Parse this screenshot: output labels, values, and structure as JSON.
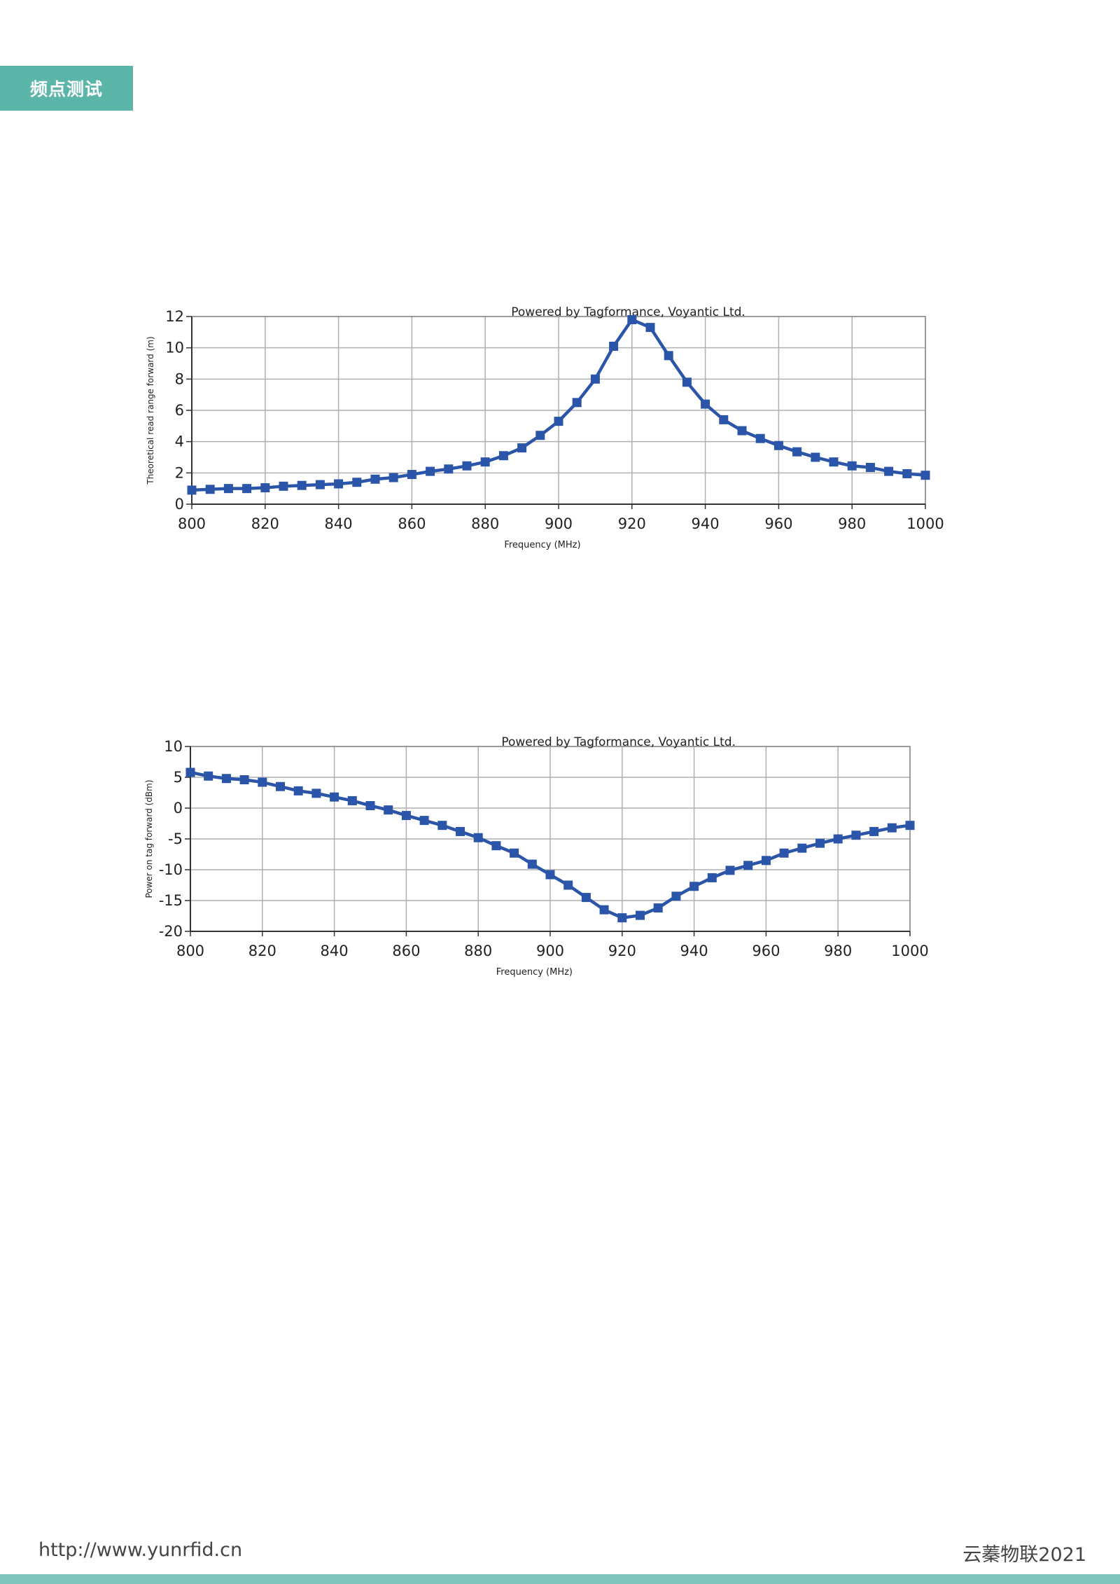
{
  "header": {
    "section_label": "频点测试"
  },
  "footer": {
    "url": "http://www.yunrfid.cn",
    "brand": "云蓁物联2021"
  },
  "colors": {
    "accent": "#5bb5a8",
    "footer_bar": "#7ec4bc",
    "series": "#2a55a8",
    "grid": "#b0b0b0"
  },
  "chart_data": [
    {
      "type": "line",
      "title": "Powered by Tagformance, Voyantic Ltd.",
      "xlabel": "Frequency (MHz)",
      "ylabel": "Theoretical read range forward (m)",
      "xlim": [
        800,
        1000
      ],
      "ylim": [
        0,
        12
      ],
      "xticks": [
        800,
        820,
        840,
        860,
        880,
        900,
        920,
        940,
        960,
        980,
        1000
      ],
      "yticks": [
        0,
        2,
        4,
        6,
        8,
        10,
        12
      ],
      "grid": true,
      "x": [
        800,
        805,
        810,
        815,
        820,
        825,
        830,
        835,
        840,
        845,
        850,
        855,
        860,
        865,
        870,
        875,
        880,
        885,
        890,
        895,
        900,
        905,
        910,
        915,
        920,
        925,
        930,
        935,
        940,
        945,
        950,
        955,
        960,
        965,
        970,
        975,
        980,
        985,
        990,
        995,
        1000
      ],
      "series": [
        {
          "values": [
            0.9,
            0.95,
            1.0,
            1.0,
            1.05,
            1.15,
            1.2,
            1.25,
            1.3,
            1.4,
            1.6,
            1.7,
            1.9,
            2.1,
            2.25,
            2.45,
            2.7,
            3.1,
            3.6,
            4.4,
            5.3,
            6.5,
            8.0,
            10.1,
            11.8,
            11.3,
            9.5,
            7.8,
            6.4,
            5.4,
            4.7,
            4.2,
            3.75,
            3.35,
            3.0,
            2.7,
            2.45,
            2.35,
            2.1,
            1.95,
            1.85
          ]
        }
      ]
    },
    {
      "type": "line",
      "title": "Powered by Tagformance, Voyantic Ltd.",
      "xlabel": "Frequency (MHz)",
      "ylabel": "Power on tag forward (dBm)",
      "xlim": [
        800,
        1000
      ],
      "ylim": [
        -20,
        10
      ],
      "xticks": [
        800,
        820,
        840,
        860,
        880,
        900,
        920,
        940,
        960,
        980,
        1000
      ],
      "yticks": [
        -20,
        -15,
        -10,
        -5,
        0,
        5,
        10
      ],
      "grid": true,
      "x": [
        800,
        805,
        810,
        815,
        820,
        825,
        830,
        835,
        840,
        845,
        850,
        855,
        860,
        865,
        870,
        875,
        880,
        885,
        890,
        895,
        900,
        905,
        910,
        915,
        920,
        925,
        930,
        935,
        940,
        945,
        950,
        955,
        960,
        965,
        970,
        975,
        980,
        985,
        990,
        995,
        1000
      ],
      "series": [
        {
          "values": [
            5.8,
            5.2,
            4.8,
            4.6,
            4.2,
            3.5,
            2.8,
            2.4,
            1.8,
            1.2,
            0.4,
            -0.3,
            -1.2,
            -2.0,
            -2.8,
            -3.8,
            -4.8,
            -6.1,
            -7.3,
            -9.1,
            -10.8,
            -12.5,
            -14.5,
            -16.5,
            -17.8,
            -17.4,
            -16.2,
            -14.3,
            -12.7,
            -11.3,
            -10.1,
            -9.3,
            -8.5,
            -7.3,
            -6.5,
            -5.7,
            -5.0,
            -4.4,
            -3.8,
            -3.2,
            -2.8
          ]
        }
      ]
    }
  ]
}
